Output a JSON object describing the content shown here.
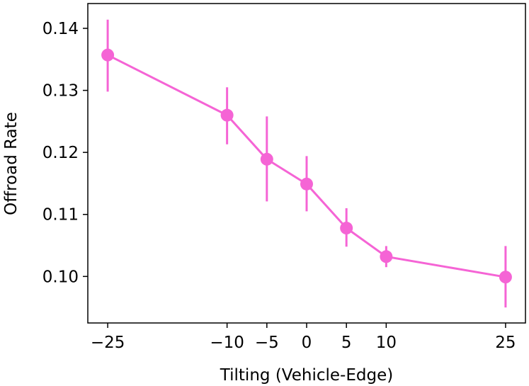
{
  "chart_data": {
    "type": "line",
    "title": "",
    "xlabel": "Tilting (Vehicle-Edge)",
    "ylabel": "Offroad Rate",
    "x": [
      -25,
      -10,
      -5,
      0,
      5,
      10,
      25
    ],
    "series": [
      {
        "values": [
          0.1357,
          0.126,
          0.1189,
          0.1149,
          0.1078,
          0.1032,
          0.0999
        ],
        "err_low": [
          0.1298,
          0.1213,
          0.1121,
          0.1105,
          0.1048,
          0.1015,
          0.095
        ],
        "err_high": [
          0.1414,
          0.1305,
          0.1258,
          0.1194,
          0.111,
          0.1049,
          0.1049
        ]
      }
    ],
    "xticks": [
      -25,
      -10,
      -5,
      0,
      5,
      10,
      25
    ],
    "xtick_labels": [
      "−25",
      "−10",
      "−5",
      "0",
      "5",
      "10",
      "25"
    ],
    "yticks": [
      0.1,
      0.11,
      0.12,
      0.13,
      0.14
    ],
    "ytick_labels": [
      "0.10",
      "0.11",
      "0.12",
      "0.13",
      "0.14"
    ],
    "xlim": [
      -27.5,
      27.5
    ],
    "ylim": [
      0.0925,
      0.144
    ],
    "grid": false,
    "legend": "none",
    "color": "#f564d5"
  }
}
